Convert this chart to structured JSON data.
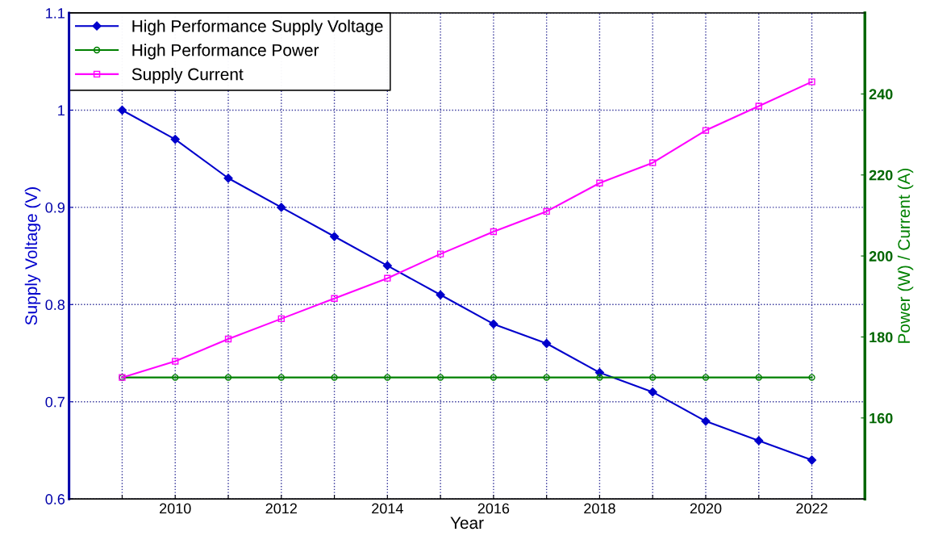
{
  "chart_data": {
    "type": "line",
    "xlabel": "Year",
    "ylabel": "Supply Voltage (V)",
    "y2label": "Power (W) / Current (A)",
    "x": [
      2009,
      2010,
      2011,
      2012,
      2013,
      2014,
      2015,
      2016,
      2017,
      2018,
      2019,
      2020,
      2021,
      2022
    ],
    "series": [
      {
        "name": "High Performance Supply Voltage",
        "color": "#0000cc",
        "marker": "diamond",
        "values": [
          1.0,
          0.97,
          0.93,
          0.9,
          0.87,
          0.84,
          0.81,
          0.78,
          0.76,
          0.73,
          0.71,
          0.68,
          0.66,
          0.64
        ]
      },
      {
        "name": "High Performance Power",
        "color": "#008000",
        "marker": "circle",
        "axis": "y2",
        "values": [
          170,
          170,
          170,
          170,
          170,
          170,
          170,
          170,
          170,
          170,
          170,
          170,
          170,
          170
        ]
      },
      {
        "name": "Supply Current",
        "color": "#ff00ff",
        "marker": "square",
        "axis": "y2",
        "values": [
          170,
          174,
          179.5,
          184.5,
          189.5,
          194.5,
          200.5,
          206,
          211,
          218,
          223,
          231,
          237,
          243
        ]
      }
    ],
    "xlim": [
      2008,
      2023
    ],
    "xticks": [
      {
        "value": 2009,
        "label": null
      },
      2010,
      {
        "value": 2011,
        "label": null
      },
      2012,
      {
        "value": 2013,
        "label": null
      },
      2014,
      {
        "value": 2015,
        "label": null
      },
      2016,
      {
        "value": 2017,
        "label": null
      },
      2018,
      {
        "value": 2019,
        "label": null
      },
      2020,
      {
        "value": 2021,
        "label": null
      },
      2022
    ],
    "ylim": [
      0.6,
      1.1
    ],
    "yticks": [
      0.6,
      0.7,
      0.8,
      0.9,
      1,
      1.1
    ],
    "y2lim": [
      140,
      260
    ],
    "y2ticks": [
      160,
      180,
      200,
      220,
      240
    ],
    "grid": true,
    "legend": "top left",
    "line_style": "solid"
  }
}
